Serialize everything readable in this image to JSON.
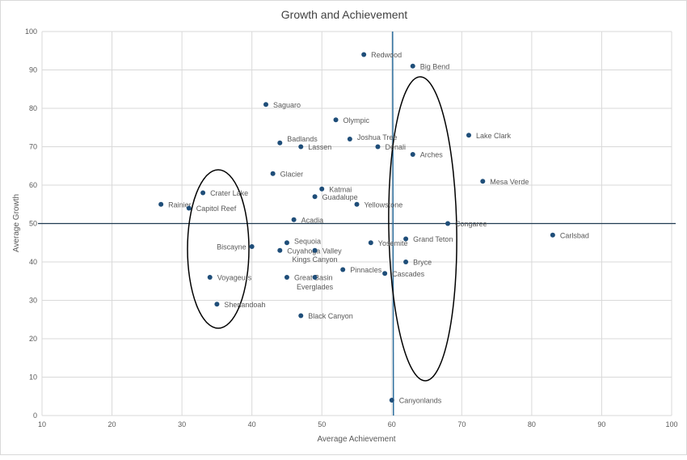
{
  "chart_data": {
    "type": "scatter",
    "title": "Growth and Achievement",
    "xlabel": "Average Achievement",
    "ylabel": "Average Growth",
    "xlim": [
      10,
      100
    ],
    "ylim": [
      0,
      100
    ],
    "xticks": [
      10,
      20,
      30,
      40,
      50,
      60,
      70,
      80,
      90,
      100
    ],
    "yticks": [
      0,
      10,
      20,
      30,
      40,
      50,
      60,
      70,
      80,
      90,
      100
    ],
    "grid": true,
    "marker_color": "#1f4e79",
    "reference_lines": {
      "horizontal_y": 50,
      "vertical_x": 60
    },
    "points": [
      {
        "label": "Redwood",
        "x": 56,
        "y": 94
      },
      {
        "label": "Big Bend",
        "x": 63,
        "y": 91
      },
      {
        "label": "Saguaro",
        "x": 42,
        "y": 81
      },
      {
        "label": "Olympic",
        "x": 52,
        "y": 77
      },
      {
        "label": "Joshua Tree",
        "x": 54,
        "y": 72
      },
      {
        "label": "Badlands",
        "x": 44,
        "y": 71
      },
      {
        "label": "Lassen",
        "x": 47,
        "y": 70
      },
      {
        "label": "Denali",
        "x": 58,
        "y": 70
      },
      {
        "label": "Arches",
        "x": 63,
        "y": 68
      },
      {
        "label": "Lake Clark",
        "x": 71,
        "y": 73
      },
      {
        "label": "Glacier",
        "x": 43,
        "y": 63
      },
      {
        "label": "Mesa Verde",
        "x": 73,
        "y": 61
      },
      {
        "label": "Crater Lake",
        "x": 33,
        "y": 58
      },
      {
        "label": "Katmai",
        "x": 50,
        "y": 59
      },
      {
        "label": "Guadalupe",
        "x": 49,
        "y": 57
      },
      {
        "label": "Rainier",
        "x": 27,
        "y": 55
      },
      {
        "label": "Capitol Reef",
        "x": 31,
        "y": 54
      },
      {
        "label": "Yellowstone",
        "x": 55,
        "y": 55
      },
      {
        "label": "Acadia",
        "x": 46,
        "y": 51
      },
      {
        "label": "Congaree",
        "x": 68,
        "y": 50
      },
      {
        "label": "Carlsbad",
        "x": 83,
        "y": 47
      },
      {
        "label": "Grand Teton",
        "x": 62,
        "y": 46
      },
      {
        "label": "Sequoia",
        "x": 45,
        "y": 45
      },
      {
        "label": "Yosemite",
        "x": 57,
        "y": 45
      },
      {
        "label": "Biscayne",
        "x": 40,
        "y": 44
      },
      {
        "label": "Cuyahoga Valley",
        "x": 44,
        "y": 43
      },
      {
        "label": "Kings Canyon",
        "x": 49,
        "y": 43
      },
      {
        "label": "Bryce",
        "x": 62,
        "y": 40
      },
      {
        "label": "Pinnacles",
        "x": 53,
        "y": 38
      },
      {
        "label": "Voyageurs",
        "x": 34,
        "y": 36
      },
      {
        "label": "Great Basin",
        "x": 45,
        "y": 36
      },
      {
        "label": "Everglades",
        "x": 49,
        "y": 36
      },
      {
        "label": "Cascades",
        "x": 59,
        "y": 37
      },
      {
        "label": "Shenandoah",
        "x": 35,
        "y": 29
      },
      {
        "label": "Black Canyon",
        "x": 47,
        "y": 26
      },
      {
        "label": "Canyonlands",
        "x": 60,
        "y": 4
      }
    ]
  }
}
